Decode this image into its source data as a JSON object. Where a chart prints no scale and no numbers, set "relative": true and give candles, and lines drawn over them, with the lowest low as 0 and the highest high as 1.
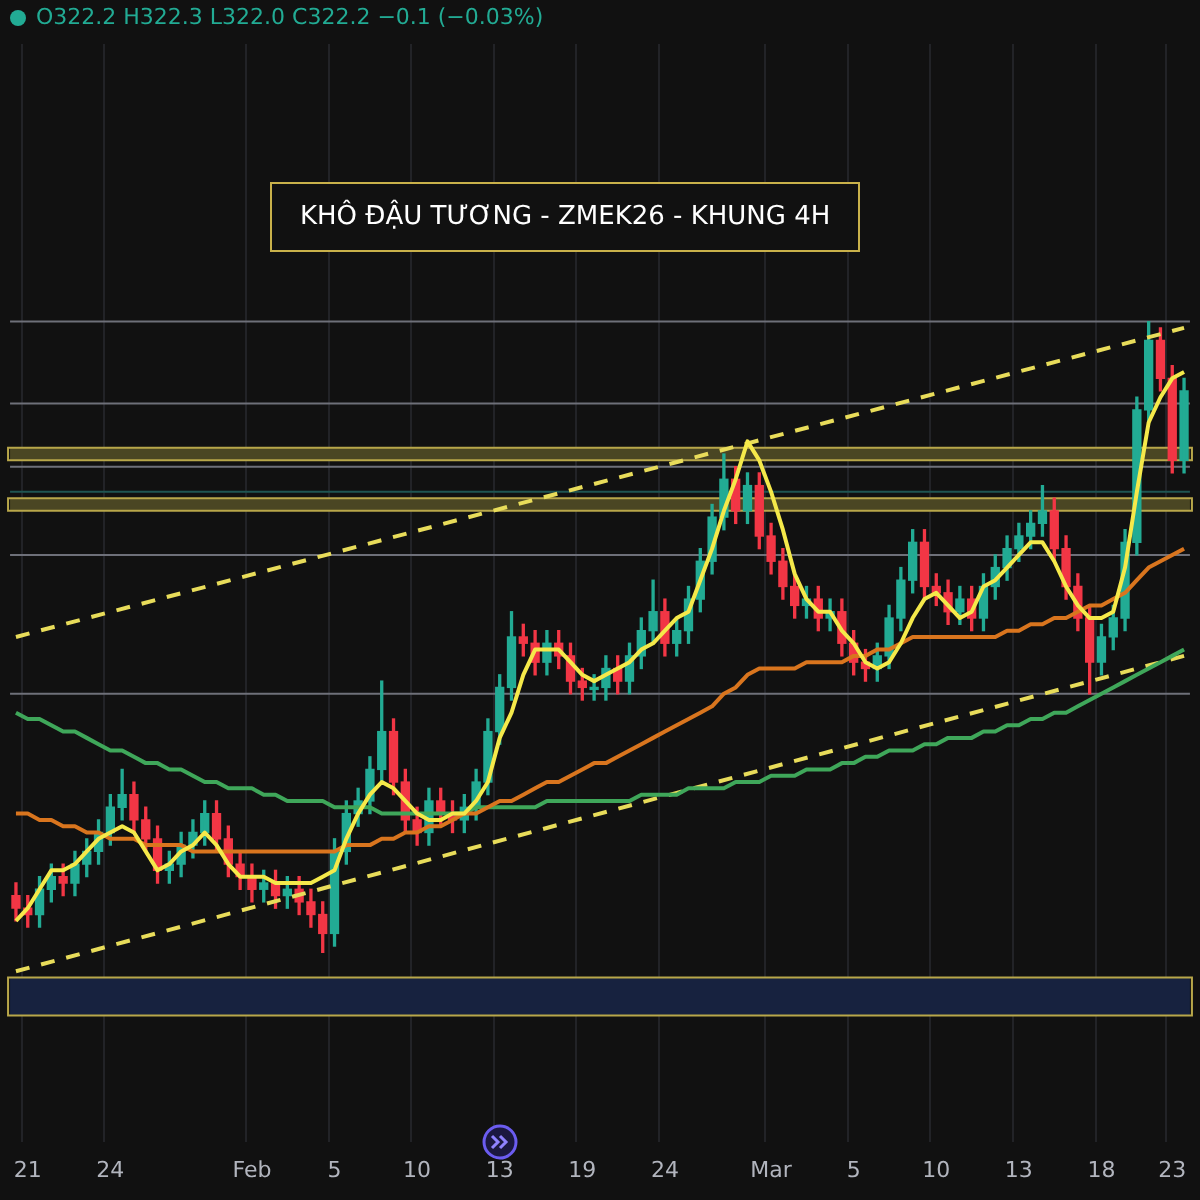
{
  "chart_data": {
    "type": "candlestick",
    "title": "KHÔ ĐẬU TƯƠNG - ZMEK26 - KHUNG 4H",
    "annotations": [
      "O322.2 H322.3 L322.0 C322.2 −0.1 (−0.03%)"
    ],
    "relative": true,
    "grid": "x",
    "marker": "none",
    "categories": [
      null,
      "21",
      null,
      null,
      null,
      null,
      null,
      null,
      "24",
      null,
      null,
      null,
      null,
      null,
      null,
      null,
      null,
      null,
      null,
      null,
      "Feb",
      null,
      null,
      null,
      null,
      null,
      null,
      "5",
      null,
      null,
      null,
      null,
      null,
      null,
      "10",
      null,
      null,
      null,
      null,
      null,
      null,
      "13",
      null,
      null,
      null,
      null,
      null,
      null,
      "19",
      null,
      null,
      null,
      null,
      null,
      null,
      "24",
      null,
      null,
      null,
      null,
      null,
      null,
      null,
      null,
      "Mar",
      null,
      null,
      null,
      null,
      null,
      null,
      "5",
      null,
      null,
      null,
      null,
      null,
      null,
      "10",
      null,
      null,
      null,
      null,
      null,
      null,
      "13",
      null,
      null,
      null,
      null,
      null,
      null,
      "18",
      null,
      null,
      null,
      null,
      null,
      "23",
      null
    ],
    "ohlc": [
      [
        0.09,
        0.11,
        0.05,
        0.07
      ],
      [
        0.07,
        0.09,
        0.04,
        0.06
      ],
      [
        0.06,
        0.12,
        0.04,
        0.1
      ],
      [
        0.1,
        0.14,
        0.08,
        0.12
      ],
      [
        0.12,
        0.14,
        0.09,
        0.11
      ],
      [
        0.11,
        0.16,
        0.09,
        0.14
      ],
      [
        0.14,
        0.18,
        0.12,
        0.16
      ],
      [
        0.16,
        0.21,
        0.14,
        0.19
      ],
      [
        0.19,
        0.25,
        0.17,
        0.23
      ],
      [
        0.23,
        0.29,
        0.21,
        0.25
      ],
      [
        0.25,
        0.27,
        0.19,
        0.21
      ],
      [
        0.21,
        0.23,
        0.16,
        0.18
      ],
      [
        0.18,
        0.2,
        0.11,
        0.13
      ],
      [
        0.13,
        0.16,
        0.11,
        0.14
      ],
      [
        0.14,
        0.19,
        0.12,
        0.17
      ],
      [
        0.17,
        0.21,
        0.15,
        0.19
      ],
      [
        0.19,
        0.24,
        0.17,
        0.22
      ],
      [
        0.22,
        0.24,
        0.16,
        0.18
      ],
      [
        0.18,
        0.2,
        0.12,
        0.14
      ],
      [
        0.14,
        0.16,
        0.1,
        0.12
      ],
      [
        0.12,
        0.14,
        0.08,
        0.1
      ],
      [
        0.1,
        0.13,
        0.08,
        0.11
      ],
      [
        0.11,
        0.13,
        0.07,
        0.09
      ],
      [
        0.09,
        0.12,
        0.07,
        0.1
      ],
      [
        0.1,
        0.12,
        0.06,
        0.08
      ],
      [
        0.08,
        0.1,
        0.04,
        0.06
      ],
      [
        0.06,
        0.08,
        0,
        0.03
      ],
      [
        0.03,
        0.18,
        0.01,
        0.16
      ],
      [
        0.16,
        0.24,
        0.14,
        0.22
      ],
      [
        0.22,
        0.26,
        0.2,
        0.24
      ],
      [
        0.24,
        0.31,
        0.22,
        0.29
      ],
      [
        0.29,
        0.43,
        0.27,
        0.35
      ],
      [
        0.35,
        0.37,
        0.25,
        0.27
      ],
      [
        0.27,
        0.29,
        0.19,
        0.21
      ],
      [
        0.21,
        0.23,
        0.17,
        0.19
      ],
      [
        0.19,
        0.26,
        0.17,
        0.24
      ],
      [
        0.24,
        0.26,
        0.2,
        0.22
      ],
      [
        0.22,
        0.24,
        0.19,
        0.21
      ],
      [
        0.21,
        0.25,
        0.19,
        0.23
      ],
      [
        0.23,
        0.29,
        0.21,
        0.27
      ],
      [
        0.27,
        0.37,
        0.25,
        0.35
      ],
      [
        0.35,
        0.44,
        0.33,
        0.42
      ],
      [
        0.42,
        0.54,
        0.4,
        0.5
      ],
      [
        0.5,
        0.52,
        0.47,
        0.49
      ],
      [
        0.49,
        0.51,
        0.44,
        0.46
      ],
      [
        0.46,
        0.51,
        0.44,
        0.49
      ],
      [
        0.49,
        0.51,
        0.45,
        0.47
      ],
      [
        0.47,
        0.49,
        0.41,
        0.43
      ],
      [
        0.43,
        0.45,
        0.4,
        0.42
      ],
      [
        0.42,
        0.44,
        0.4,
        0.42
      ],
      [
        0.42,
        0.47,
        0.4,
        0.45
      ],
      [
        0.45,
        0.47,
        0.41,
        0.43
      ],
      [
        0.43,
        0.49,
        0.41,
        0.47
      ],
      [
        0.47,
        0.53,
        0.45,
        0.51
      ],
      [
        0.51,
        0.59,
        0.49,
        0.54
      ],
      [
        0.54,
        0.56,
        0.47,
        0.49
      ],
      [
        0.49,
        0.53,
        0.47,
        0.51
      ],
      [
        0.51,
        0.58,
        0.49,
        0.56
      ],
      [
        0.56,
        0.64,
        0.54,
        0.62
      ],
      [
        0.62,
        0.71,
        0.6,
        0.69
      ],
      [
        0.69,
        0.79,
        0.67,
        0.75
      ],
      [
        0.75,
        0.77,
        0.68,
        0.7
      ],
      [
        0.7,
        0.76,
        0.68,
        0.74
      ],
      [
        0.74,
        0.76,
        0.64,
        0.66
      ],
      [
        0.66,
        0.68,
        0.6,
        0.62
      ],
      [
        0.62,
        0.64,
        0.56,
        0.58
      ],
      [
        0.58,
        0.6,
        0.53,
        0.55
      ],
      [
        0.55,
        0.58,
        0.53,
        0.56
      ],
      [
        0.56,
        0.58,
        0.51,
        0.53
      ],
      [
        0.53,
        0.56,
        0.51,
        0.54
      ],
      [
        0.54,
        0.56,
        0.47,
        0.49
      ],
      [
        0.49,
        0.51,
        0.44,
        0.46
      ],
      [
        0.46,
        0.48,
        0.43,
        0.45
      ],
      [
        0.45,
        0.49,
        0.43,
        0.47
      ],
      [
        0.47,
        0.55,
        0.45,
        0.53
      ],
      [
        0.53,
        0.61,
        0.51,
        0.59
      ],
      [
        0.59,
        0.67,
        0.57,
        0.65
      ],
      [
        0.65,
        0.67,
        0.56,
        0.58
      ],
      [
        0.58,
        0.6,
        0.55,
        0.57
      ],
      [
        0.57,
        0.59,
        0.52,
        0.54
      ],
      [
        0.54,
        0.58,
        0.52,
        0.56
      ],
      [
        0.56,
        0.58,
        0.51,
        0.53
      ],
      [
        0.53,
        0.6,
        0.51,
        0.58
      ],
      [
        0.58,
        0.63,
        0.56,
        0.61
      ],
      [
        0.61,
        0.66,
        0.59,
        0.64
      ],
      [
        0.64,
        0.68,
        0.62,
        0.66
      ],
      [
        0.66,
        0.7,
        0.64,
        0.68
      ],
      [
        0.68,
        0.74,
        0.66,
        0.7
      ],
      [
        0.7,
        0.72,
        0.62,
        0.64
      ],
      [
        0.64,
        0.66,
        0.56,
        0.58
      ],
      [
        0.58,
        0.6,
        0.51,
        0.53
      ],
      [
        0.53,
        0.55,
        0.41,
        0.46
      ],
      [
        0.46,
        0.52,
        0.44,
        0.5
      ],
      [
        0.5,
        0.55,
        0.48,
        0.53
      ],
      [
        0.53,
        0.67,
        0.51,
        0.65
      ],
      [
        0.65,
        0.88,
        0.63,
        0.86
      ],
      [
        0.86,
        1,
        0.84,
        0.97
      ],
      [
        0.97,
        0.99,
        0.89,
        0.91
      ],
      [
        0.91,
        0.93,
        0.76,
        0.78
      ],
      [
        0.78,
        0.91,
        0.76,
        0.89
      ]
    ],
    "series": [
      {
        "type": "line",
        "color": "#f5e94a",
        "values": [
          0.05,
          0.07,
          0.1,
          0.13,
          0.13,
          0.14,
          0.16,
          0.18,
          0.19,
          0.2,
          0.19,
          0.16,
          0.13,
          0.14,
          0.16,
          0.17,
          0.19,
          0.17,
          0.14,
          0.12,
          0.12,
          0.12,
          0.11,
          0.11,
          0.11,
          0.11,
          0.12,
          0.13,
          0.18,
          0.22,
          0.25,
          0.27,
          0.26,
          0.24,
          0.22,
          0.21,
          0.21,
          0.22,
          0.22,
          0.24,
          0.27,
          0.34,
          0.38,
          0.44,
          0.48,
          0.48,
          0.48,
          0.46,
          0.44,
          0.43,
          0.44,
          0.45,
          0.46,
          0.48,
          0.49,
          0.51,
          0.53,
          0.54,
          0.59,
          0.64,
          0.7,
          0.75,
          0.81,
          0.78,
          0.73,
          0.67,
          0.6,
          0.56,
          0.54,
          0.54,
          0.51,
          0.49,
          0.46,
          0.45,
          0.46,
          0.49,
          0.53,
          0.56,
          0.57,
          0.55,
          0.53,
          0.54,
          0.58,
          0.59,
          0.61,
          0.63,
          0.65,
          0.65,
          0.62,
          0.58,
          0.55,
          0.53,
          0.53,
          0.54,
          0.61,
          0.73,
          0.84,
          0.88,
          0.91,
          0.92
        ]
      },
      {
        "type": "line",
        "color": "#d9751e",
        "values": [
          0.22,
          0.22,
          0.21,
          0.21,
          0.2,
          0.2,
          0.19,
          0.19,
          0.18,
          0.18,
          0.18,
          0.17,
          0.17,
          0.17,
          0.17,
          0.16,
          0.16,
          0.16,
          0.16,
          0.16,
          0.16,
          0.16,
          0.16,
          0.16,
          0.16,
          0.16,
          0.16,
          0.16,
          0.17,
          0.17,
          0.17,
          0.18,
          0.18,
          0.19,
          0.19,
          0.2,
          0.2,
          0.21,
          0.22,
          0.22,
          0.23,
          0.24,
          0.24,
          0.25,
          0.26,
          0.27,
          0.27,
          0.28,
          0.29,
          0.3,
          0.3,
          0.31,
          0.32,
          0.33,
          0.34,
          0.35,
          0.36,
          0.37,
          0.38,
          0.39,
          0.41,
          0.42,
          0.44,
          0.45,
          0.45,
          0.45,
          0.45,
          0.46,
          0.46,
          0.46,
          0.46,
          0.47,
          0.47,
          0.48,
          0.48,
          0.49,
          0.5,
          0.5,
          0.5,
          0.5,
          0.5,
          0.5,
          0.5,
          0.5,
          0.51,
          0.51,
          0.52,
          0.52,
          0.53,
          0.53,
          0.54,
          0.55,
          0.55,
          0.56,
          0.57,
          0.59,
          0.61,
          0.62,
          0.63,
          0.64
        ]
      },
      {
        "type": "line",
        "color": "#3fa75a",
        "values": [
          0.38,
          0.37,
          0.37,
          0.36,
          0.35,
          0.35,
          0.34,
          0.33,
          0.32,
          0.32,
          0.31,
          0.3,
          0.3,
          0.29,
          0.29,
          0.28,
          0.27,
          0.27,
          0.26,
          0.26,
          0.26,
          0.25,
          0.25,
          0.24,
          0.24,
          0.24,
          0.24,
          0.23,
          0.23,
          0.23,
          0.23,
          0.22,
          0.22,
          0.22,
          0.22,
          0.22,
          0.22,
          0.22,
          0.22,
          0.23,
          0.23,
          0.23,
          0.23,
          0.23,
          0.23,
          0.24,
          0.24,
          0.24,
          0.24,
          0.24,
          0.24,
          0.24,
          0.24,
          0.25,
          0.25,
          0.25,
          0.25,
          0.26,
          0.26,
          0.26,
          0.26,
          0.27,
          0.27,
          0.27,
          0.28,
          0.28,
          0.28,
          0.29,
          0.29,
          0.29,
          0.3,
          0.3,
          0.31,
          0.31,
          0.32,
          0.32,
          0.32,
          0.33,
          0.33,
          0.34,
          0.34,
          0.34,
          0.35,
          0.35,
          0.36,
          0.36,
          0.37,
          0.37,
          0.38,
          0.38,
          0.39,
          0.4,
          0.41,
          0.42,
          0.43,
          0.44,
          0.45,
          0.46,
          0.47,
          0.48
        ]
      },
      {
        "type": "line",
        "color": "#e8dc5a",
        "line_style": "dashed",
        "values": [
          0.5,
          null,
          null,
          null,
          null,
          null,
          null,
          null,
          null,
          null,
          null,
          null,
          null,
          null,
          null,
          null,
          null,
          null,
          null,
          null,
          null,
          null,
          null,
          null,
          null,
          null,
          null,
          null,
          null,
          null,
          null,
          null,
          null,
          null,
          null,
          null,
          null,
          null,
          null,
          null,
          null,
          null,
          null,
          null,
          null,
          null,
          null,
          null,
          null,
          null,
          null,
          null,
          null,
          null,
          null,
          null,
          null,
          null,
          null,
          null,
          null,
          null,
          null,
          null,
          null,
          null,
          null,
          null,
          null,
          null,
          null,
          null,
          null,
          null,
          null,
          null,
          null,
          null,
          null,
          null,
          null,
          null,
          null,
          null,
          null,
          null,
          null,
          null,
          null,
          null,
          null,
          null,
          null,
          null,
          null,
          null,
          null,
          null,
          null,
          0.99
        ]
      },
      {
        "type": "line",
        "color": "#e8dc5a",
        "line_style": "dashed",
        "values": [
          -0.03,
          null,
          null,
          null,
          null,
          null,
          null,
          null,
          null,
          null,
          null,
          null,
          null,
          null,
          null,
          null,
          null,
          null,
          null,
          null,
          null,
          null,
          null,
          null,
          null,
          null,
          null,
          null,
          null,
          null,
          null,
          null,
          null,
          null,
          null,
          null,
          null,
          null,
          null,
          null,
          null,
          null,
          null,
          null,
          null,
          null,
          null,
          null,
          null,
          null,
          null,
          null,
          null,
          null,
          null,
          null,
          null,
          null,
          null,
          null,
          null,
          null,
          null,
          null,
          null,
          null,
          null,
          null,
          null,
          null,
          null,
          null,
          null,
          null,
          null,
          null,
          null,
          null,
          null,
          null,
          null,
          null,
          null,
          null,
          null,
          null,
          null,
          null,
          null,
          null,
          null,
          null,
          null,
          null,
          null,
          null,
          null,
          null,
          null,
          0.47
        ]
      }
    ],
    "ref_lines": [
      {
        "axis": "y",
        "value": 1,
        "color": "#6e7079"
      },
      {
        "axis": "y",
        "value": 0.87,
        "color": "#6e7079"
      },
      {
        "axis": "y",
        "value": 0.77,
        "color": "#6e7079"
      },
      {
        "axis": "y",
        "value": 0.73,
        "color": "#1f5552"
      },
      {
        "axis": "y",
        "value": 0.63,
        "color": "#6e7079"
      },
      {
        "axis": "y",
        "value": 0.41,
        "color": "#6e7079"
      }
    ],
    "bands": [
      {
        "axis": "y",
        "from": 0.78,
        "to": 0.8,
        "color": "#4a4623"
      },
      {
        "axis": "y",
        "from": 0.7,
        "to": 0.72,
        "color": "#4a4623"
      },
      {
        "axis": "y",
        "from": -0.1,
        "to": -0.04,
        "color": "#17223f"
      }
    ],
    "legend": false
  }
}
